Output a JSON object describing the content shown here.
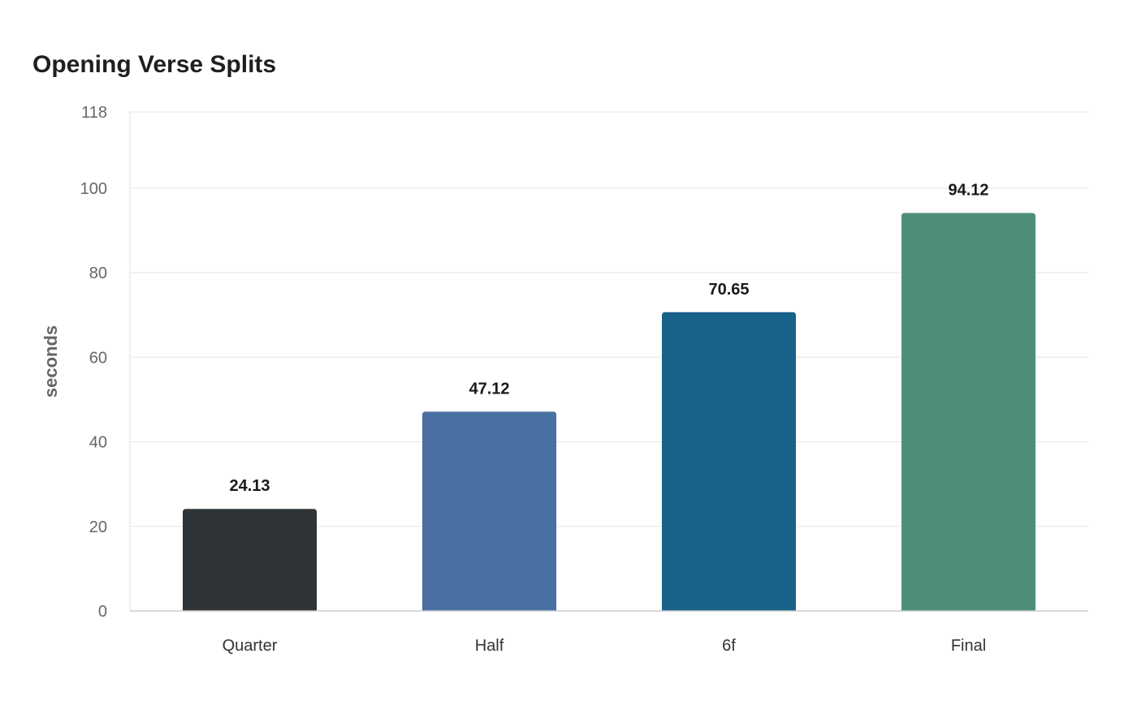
{
  "chart_data": {
    "type": "bar",
    "title": "Opening Verse Splits",
    "ylabel": "seconds",
    "xlabel": "",
    "categories": [
      "Quarter",
      "Half",
      "6f",
      "Final"
    ],
    "values": [
      24.13,
      47.12,
      70.65,
      94.12
    ],
    "value_labels": [
      "24.13",
      "47.12",
      "70.65",
      "94.12"
    ],
    "colors": [
      "#2e3437",
      "#4a70a3",
      "#186189",
      "#4e8e7b"
    ],
    "ylim": [
      0,
      118
    ],
    "yticks": [
      0,
      20,
      40,
      60,
      80,
      100,
      118
    ],
    "grid": true,
    "legend": "none"
  }
}
